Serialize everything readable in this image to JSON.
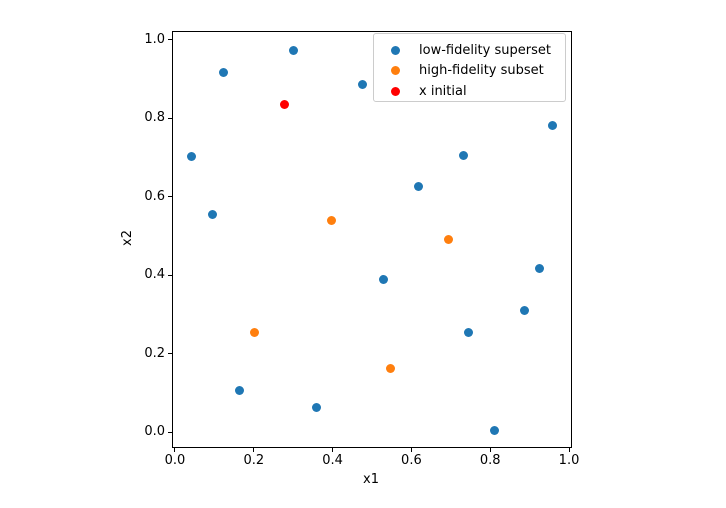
{
  "figure": {
    "background_color": "#ffffff"
  },
  "chart_data": {
    "type": "scatter",
    "title": "",
    "xlabel": "x1",
    "ylabel": "x2",
    "xlim": [
      -0.005,
      1.005
    ],
    "ylim": [
      -0.038,
      1.02
    ],
    "xticks": [
      0.0,
      0.2,
      0.4,
      0.6,
      0.8,
      1.0
    ],
    "yticks": [
      0.0,
      0.2,
      0.4,
      0.6,
      0.8,
      1.0
    ],
    "xtick_labels": [
      "0.0",
      "0.2",
      "0.4",
      "0.6",
      "0.8",
      "1.0"
    ],
    "ytick_labels": [
      "0.0",
      "0.2",
      "0.4",
      "0.6",
      "0.8",
      "1.0"
    ],
    "grid": false,
    "legend_position": "upper right",
    "marker_diameter_px": 9,
    "series": [
      {
        "name": "low-fidelity superset",
        "color": "#1f77b4",
        "points": [
          [
            0.302,
            0.972
          ],
          [
            0.122,
            0.918
          ],
          [
            0.477,
            0.885
          ],
          [
            0.959,
            0.781
          ],
          [
            0.041,
            0.702
          ],
          [
            0.731,
            0.704
          ],
          [
            0.619,
            0.627
          ],
          [
            0.094,
            0.556
          ],
          [
            0.926,
            0.418
          ],
          [
            0.528,
            0.39
          ],
          [
            0.888,
            0.311
          ],
          [
            0.746,
            0.253
          ],
          [
            0.165,
            0.105
          ],
          [
            0.358,
            0.062
          ],
          [
            0.81,
            0.005
          ]
        ]
      },
      {
        "name": "high-fidelity subset",
        "color": "#ff7f0e",
        "points": [
          [
            0.396,
            0.54
          ],
          [
            0.695,
            0.49
          ],
          [
            0.203,
            0.253
          ],
          [
            0.546,
            0.161
          ]
        ]
      },
      {
        "name": "x initial",
        "color": "#ff0000",
        "points": [
          [
            0.277,
            0.834
          ]
        ]
      }
    ]
  }
}
